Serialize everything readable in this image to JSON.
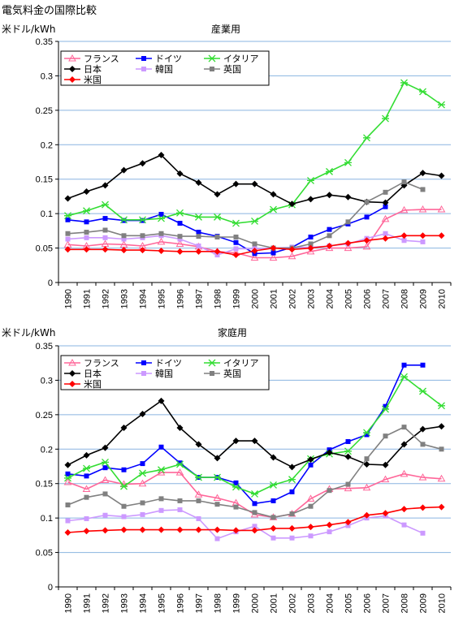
{
  "page_title": "電気料金の国際比較",
  "chart_data": [
    {
      "type": "line",
      "title": "産業用",
      "ylabel": "米ドル/kWh",
      "xlabel": "",
      "ylim": [
        0,
        0.35
      ],
      "yticks": [
        "0",
        "0.05",
        "0.1",
        "0.15",
        "0.2",
        "0.25",
        "0.3",
        "0.35"
      ],
      "grid": true,
      "legend_position": "top-left",
      "x": [
        "1990",
        "1991",
        "1992",
        "1993",
        "1994",
        "1995",
        "1996",
        "1997",
        "1998",
        "1999",
        "2000",
        "2001",
        "2002",
        "2003",
        "2004",
        "2005",
        "2006",
        "2007",
        "2008",
        "2009",
        "2010"
      ],
      "series": [
        {
          "name": "フランス",
          "color": "#ff6699",
          "marker": "triangle",
          "values": [
            0.055,
            0.053,
            0.056,
            0.055,
            0.053,
            0.059,
            0.056,
            0.052,
            0.045,
            0.043,
            0.036,
            0.036,
            0.038,
            0.045,
            0.05,
            0.05,
            0.052,
            0.092,
            0.105,
            0.106,
            0.106
          ]
        },
        {
          "name": "ドイツ",
          "color": "#0000ff",
          "marker": "square",
          "values": [
            0.091,
            0.088,
            0.093,
            0.09,
            0.09,
            0.099,
            0.086,
            0.073,
            0.067,
            0.058,
            0.042,
            0.043,
            0.051,
            0.066,
            0.077,
            0.085,
            0.095,
            0.11,
            null,
            null,
            null
          ]
        },
        {
          "name": "イタリア",
          "color": "#33dd33",
          "marker": "star",
          "values": [
            0.097,
            0.104,
            0.113,
            0.091,
            0.091,
            0.093,
            0.101,
            0.095,
            0.095,
            0.086,
            0.089,
            0.106,
            0.113,
            0.148,
            0.161,
            0.174,
            0.21,
            0.238,
            0.29,
            0.277,
            0.258
          ]
        },
        {
          "name": "日本",
          "color": "#000000",
          "marker": "diamond",
          "values": [
            0.122,
            0.132,
            0.141,
            0.163,
            0.173,
            0.185,
            0.158,
            0.145,
            0.128,
            0.143,
            0.143,
            0.128,
            0.114,
            0.121,
            0.127,
            0.124,
            0.117,
            0.116,
            0.141,
            0.159,
            0.155
          ]
        },
        {
          "name": "韓国",
          "color": "#cc99ff",
          "marker": "square",
          "values": [
            0.063,
            0.065,
            0.065,
            0.063,
            0.065,
            0.068,
            0.063,
            0.053,
            0.04,
            0.049,
            0.049,
            0.05,
            0.051,
            0.051,
            0.053,
            0.056,
            0.064,
            0.071,
            0.061,
            0.059,
            null
          ]
        },
        {
          "name": "英国",
          "color": "#808080",
          "marker": "square",
          "values": [
            0.071,
            0.073,
            0.076,
            0.068,
            0.068,
            0.071,
            0.067,
            0.067,
            0.066,
            0.066,
            0.056,
            0.05,
            0.05,
            0.056,
            0.068,
            0.088,
            0.117,
            0.131,
            0.146,
            0.135,
            null
          ]
        },
        {
          "name": "米国",
          "color": "#ff0000",
          "marker": "diamond",
          "values": [
            0.048,
            0.048,
            0.048,
            0.047,
            0.047,
            0.046,
            0.045,
            0.045,
            0.045,
            0.04,
            0.046,
            0.05,
            0.048,
            0.05,
            0.053,
            0.057,
            0.061,
            0.064,
            0.068,
            0.068,
            0.068
          ]
        }
      ]
    },
    {
      "type": "line",
      "title": "家庭用",
      "ylabel": "米ドル/kWh",
      "xlabel": "",
      "ylim": [
        0,
        0.35
      ],
      "yticks": [
        "0",
        "0.05",
        "0.1",
        "0.15",
        "0.2",
        "0.25",
        "0.3",
        "0.35"
      ],
      "grid": true,
      "legend_position": "top-left",
      "x": [
        "1990",
        "1991",
        "1992",
        "1993",
        "1994",
        "1995",
        "1996",
        "1997",
        "1998",
        "1999",
        "2000",
        "2001",
        "2002",
        "2003",
        "2004",
        "2005",
        "2006",
        "2007",
        "2008",
        "2009",
        "2010"
      ],
      "series": [
        {
          "name": "フランス",
          "color": "#ff6699",
          "marker": "triangle",
          "values": [
            0.152,
            0.142,
            0.155,
            0.149,
            0.15,
            0.166,
            0.166,
            0.134,
            0.129,
            0.122,
            0.105,
            0.101,
            0.106,
            0.128,
            0.142,
            0.143,
            0.144,
            0.156,
            0.164,
            0.159,
            0.157
          ]
        },
        {
          "name": "ドイツ",
          "color": "#0000ff",
          "marker": "square",
          "values": [
            0.164,
            0.161,
            0.173,
            0.17,
            0.179,
            0.203,
            0.18,
            0.159,
            0.159,
            0.151,
            0.121,
            0.125,
            0.138,
            0.177,
            0.199,
            0.211,
            0.221,
            0.262,
            0.322,
            0.322,
            null
          ]
        },
        {
          "name": "イタリア",
          "color": "#33dd33",
          "marker": "star",
          "values": [
            0.158,
            0.172,
            0.181,
            0.146,
            0.165,
            0.17,
            0.178,
            0.159,
            0.159,
            0.145,
            0.135,
            0.148,
            0.156,
            0.186,
            0.193,
            0.197,
            0.224,
            0.258,
            0.305,
            0.284,
            0.263
          ]
        },
        {
          "name": "日本",
          "color": "#000000",
          "marker": "diamond",
          "values": [
            0.177,
            0.191,
            0.202,
            0.231,
            0.251,
            0.27,
            0.231,
            0.207,
            0.187,
            0.212,
            0.212,
            0.188,
            0.174,
            0.185,
            0.195,
            0.189,
            0.178,
            0.177,
            0.207,
            0.229,
            0.233
          ]
        },
        {
          "name": "韓国",
          "color": "#cc99ff",
          "marker": "square",
          "values": [
            0.096,
            0.099,
            0.104,
            0.102,
            0.105,
            0.111,
            0.112,
            0.099,
            0.07,
            0.08,
            0.088,
            0.071,
            0.071,
            0.074,
            0.08,
            0.089,
            0.1,
            0.103,
            0.09,
            0.078,
            null
          ]
        },
        {
          "name": "英国",
          "color": "#808080",
          "marker": "square",
          "values": [
            0.119,
            0.13,
            0.135,
            0.117,
            0.122,
            0.128,
            0.125,
            0.125,
            0.12,
            0.116,
            0.108,
            0.101,
            0.106,
            0.117,
            0.14,
            0.149,
            0.186,
            0.219,
            0.232,
            0.207,
            0.2
          ]
        },
        {
          "name": "米国",
          "color": "#ff0000",
          "marker": "diamond",
          "values": [
            0.079,
            0.081,
            0.082,
            0.083,
            0.083,
            0.083,
            0.083,
            0.083,
            0.083,
            0.082,
            0.082,
            0.085,
            0.085,
            0.087,
            0.09,
            0.094,
            0.104,
            0.107,
            0.113,
            0.115,
            0.116
          ]
        }
      ]
    }
  ]
}
